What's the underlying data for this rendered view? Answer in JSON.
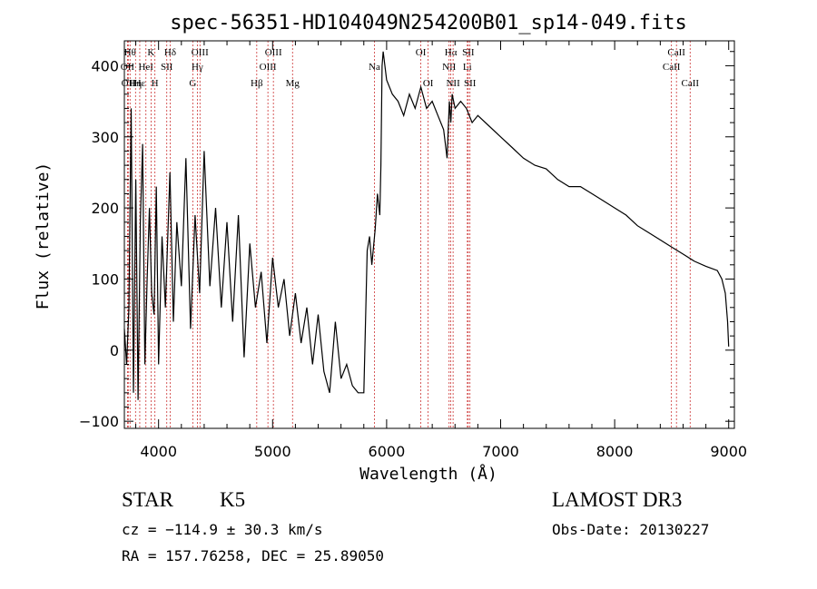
{
  "chart_data": {
    "type": "line",
    "title": "spec-56351-HD104049N254200B01_sp14-049.fits",
    "xlabel": "Wavelength (Å)",
    "ylabel": "Flux (relative)",
    "xlim": [
      3700,
      9050
    ],
    "ylim": [
      -110,
      435
    ],
    "x_ticks": [
      4000,
      5000,
      6000,
      7000,
      8000,
      9000
    ],
    "y_ticks": [
      -100,
      0,
      100,
      200,
      300,
      400
    ],
    "series": [
      {
        "name": "flux",
        "x": [
          3700,
          3720,
          3740,
          3760,
          3780,
          3800,
          3820,
          3840,
          3860,
          3880,
          3900,
          3920,
          3940,
          3960,
          3980,
          4000,
          4030,
          4060,
          4100,
          4130,
          4160,
          4200,
          4240,
          4280,
          4320,
          4360,
          4400,
          4450,
          4500,
          4550,
          4600,
          4650,
          4700,
          4750,
          4800,
          4850,
          4900,
          4950,
          5000,
          5050,
          5100,
          5150,
          5200,
          5250,
          5300,
          5350,
          5400,
          5450,
          5500,
          5550,
          5600,
          5650,
          5700,
          5750,
          5800,
          5830,
          5850,
          5870,
          5900,
          5920,
          5940,
          5950,
          5960,
          5970,
          6000,
          6050,
          6100,
          6150,
          6200,
          6250,
          6300,
          6350,
          6400,
          6450,
          6500,
          6530,
          6550,
          6563,
          6575,
          6600,
          6650,
          6700,
          6750,
          6800,
          6900,
          7000,
          7100,
          7200,
          7300,
          7400,
          7500,
          7600,
          7700,
          7800,
          7900,
          8000,
          8100,
          8200,
          8300,
          8400,
          8500,
          8600,
          8700,
          8800,
          8900,
          8940,
          8970,
          8990,
          9000
        ],
        "values": [
          30,
          -20,
          60,
          340,
          -60,
          240,
          -70,
          180,
          290,
          -20,
          100,
          200,
          80,
          50,
          230,
          -20,
          160,
          60,
          250,
          40,
          180,
          90,
          270,
          30,
          190,
          80,
          280,
          90,
          200,
          60,
          180,
          40,
          190,
          -10,
          150,
          60,
          110,
          10,
          130,
          60,
          100,
          20,
          80,
          10,
          60,
          -20,
          50,
          -30,
          -60,
          40,
          -40,
          -20,
          -50,
          -60,
          -60,
          140,
          160,
          120,
          170,
          220,
          190,
          260,
          400,
          420,
          380,
          360,
          350,
          330,
          360,
          340,
          370,
          340,
          350,
          330,
          310,
          270,
          350,
          320,
          360,
          340,
          350,
          340,
          320,
          330,
          315,
          300,
          285,
          270,
          260,
          255,
          240,
          230,
          230,
          220,
          210,
          200,
          190,
          175,
          165,
          155,
          145,
          135,
          125,
          118,
          112,
          100,
          80,
          40,
          5
        ]
      }
    ],
    "lines": [
      {
        "x": 3750,
        "label": "Hθ",
        "row": 0
      },
      {
        "x": 3727,
        "label": "OII",
        "row": 1
      },
      {
        "x": 3734,
        "label": "OII",
        "row": 2
      },
      {
        "x": 3798,
        "label": "Hη",
        "row": 2
      },
      {
        "x": 3835,
        "label": "Hε",
        "row": 2
      },
      {
        "x": 3889,
        "label": "HeI",
        "row": 1
      },
      {
        "x": 3934,
        "label": "K",
        "row": 0
      },
      {
        "x": 3968,
        "label": "H",
        "row": 2
      },
      {
        "x": 4072,
        "label": "SII",
        "row": 1
      },
      {
        "x": 4102,
        "label": "Hδ",
        "row": 0
      },
      {
        "x": 4300,
        "label": "G",
        "row": 2
      },
      {
        "x": 4340,
        "label": "Hγ",
        "row": 1
      },
      {
        "x": 4363,
        "label": "OIII",
        "row": 0
      },
      {
        "x": 4861,
        "label": "Hβ",
        "row": 2
      },
      {
        "x": 4959,
        "label": "OIII",
        "row": 1
      },
      {
        "x": 5007,
        "label": "OIII",
        "row": 0
      },
      {
        "x": 5175,
        "label": "Mg",
        "row": 2
      },
      {
        "x": 5893,
        "label": "Na",
        "row": 1
      },
      {
        "x": 6300,
        "label": "OI",
        "row": 0
      },
      {
        "x": 6364,
        "label": "OI",
        "row": 2
      },
      {
        "x": 6548,
        "label": "NII",
        "row": 1
      },
      {
        "x": 6563,
        "label": "Hα",
        "row": 0
      },
      {
        "x": 6583,
        "label": "NII",
        "row": 2
      },
      {
        "x": 6708,
        "label": "Li",
        "row": 1
      },
      {
        "x": 6716,
        "label": "SII",
        "row": 0
      },
      {
        "x": 6731,
        "label": "SII",
        "row": 2
      },
      {
        "x": 8498,
        "label": "CaII",
        "row": 1
      },
      {
        "x": 8542,
        "label": "CaII",
        "row": 0
      },
      {
        "x": 8662,
        "label": "CaII",
        "row": 2
      }
    ]
  },
  "info": {
    "class_label": "STAR",
    "subclass": "K5",
    "survey": "LAMOST DR3",
    "cz": "cz = −114.9 ± 30.3 km/s",
    "obs_date": "Obs-Date: 20130227",
    "coords": "RA = 157.76258, DEC =  25.89050"
  },
  "colors": {
    "line": "#000000",
    "marker": "#cc3333"
  }
}
